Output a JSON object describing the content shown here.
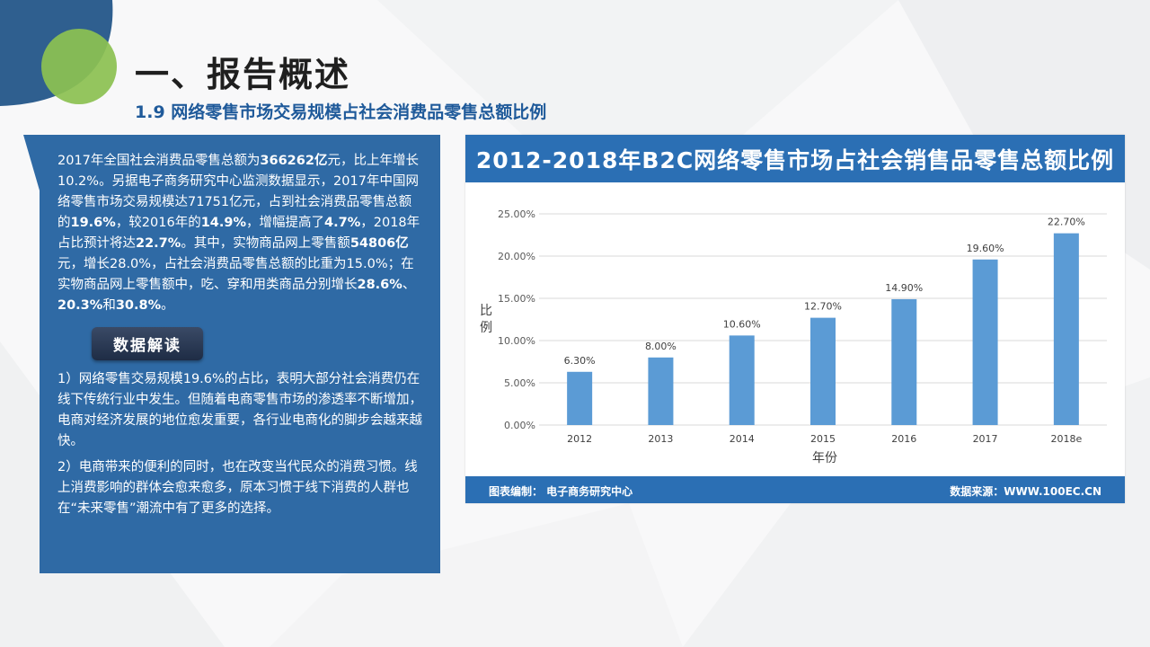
{
  "header": {
    "title": "一、报告概述",
    "subtitle": "1.9 网络零售市场交易规模占社会消费品零售总额比例"
  },
  "left_panel": {
    "intro": [
      {
        "t": "2017年全国社会消费品零售总额为",
        "b": false
      },
      {
        "t": "366262亿",
        "b": true
      },
      {
        "t": "元，比上年增长10.2%。另据电子商务研究中心监测数据显示，2017年中国网络零售市场交易规模达71751亿元，占到社会消费品零售总额的",
        "b": false
      },
      {
        "t": "19.6%",
        "b": true
      },
      {
        "t": "，较2016年的",
        "b": false
      },
      {
        "t": "14.9%",
        "b": true
      },
      {
        "t": "，增幅提高了",
        "b": false
      },
      {
        "t": "4.7%",
        "b": true
      },
      {
        "t": "，2018年占比预计将达",
        "b": false
      },
      {
        "t": "22.7%",
        "b": true
      },
      {
        "t": "。其中，实物商品网上零售额",
        "b": false
      },
      {
        "t": "54806亿",
        "b": true
      },
      {
        "t": "元，增长28.0%，占社会消费品零售总额的比重为15.0%；在实物商品网上零售额中，吃、穿和用类商品分别增长",
        "b": false
      },
      {
        "t": "28.6%",
        "b": true
      },
      {
        "t": "、",
        "b": false
      },
      {
        "t": "20.3%",
        "b": true
      },
      {
        "t": "和",
        "b": false
      },
      {
        "t": "30.8%",
        "b": true
      },
      {
        "t": "。",
        "b": false
      }
    ],
    "badge": "数据解读",
    "points": [
      "1）网络零售交易规模19.6%的占比，表明大部分社会消费仍在线下传统行业中发生。但随着电商零售市场的渗透率不断增加，电商对经济发展的地位愈发重要，各行业电商化的脚步会越来越快。",
      "2）电商带来的便利的同时，也在改变当代民众的消费习惯。线上消费影响的群体会愈来愈多，原本习惯于线下消费的人群也在“未来零售”潮流中有了更多的选择。"
    ]
  },
  "chart_card": {
    "header": "2012-2018年B2C网络零售市场占社会销售品零售总额比例",
    "footer_left": "图表编制： 电子商务研究中心",
    "footer_right": "数据来源：WWW.100EC.CN",
    "bar_color": "#5b9bd5",
    "header_color": "#2b6fb4"
  },
  "chart_data": {
    "type": "bar",
    "categories": [
      "2012",
      "2013",
      "2014",
      "2015",
      "2016",
      "2017",
      "2018e"
    ],
    "values": [
      6.3,
      8.0,
      10.6,
      12.7,
      14.9,
      19.6,
      22.7
    ],
    "data_labels": [
      "6.30%",
      "8.00%",
      "10.60%",
      "12.70%",
      "14.90%",
      "19.60%",
      "22.70%"
    ],
    "y_ticks": [
      "0.00%",
      "5.00%",
      "10.00%",
      "15.00%",
      "20.00%",
      "25.00%"
    ],
    "y_tick_values": [
      0,
      5,
      10,
      15,
      20,
      25
    ],
    "xlabel": "年份",
    "ylabel": "比例",
    "ylim": [
      0,
      25
    ],
    "grid": true
  }
}
